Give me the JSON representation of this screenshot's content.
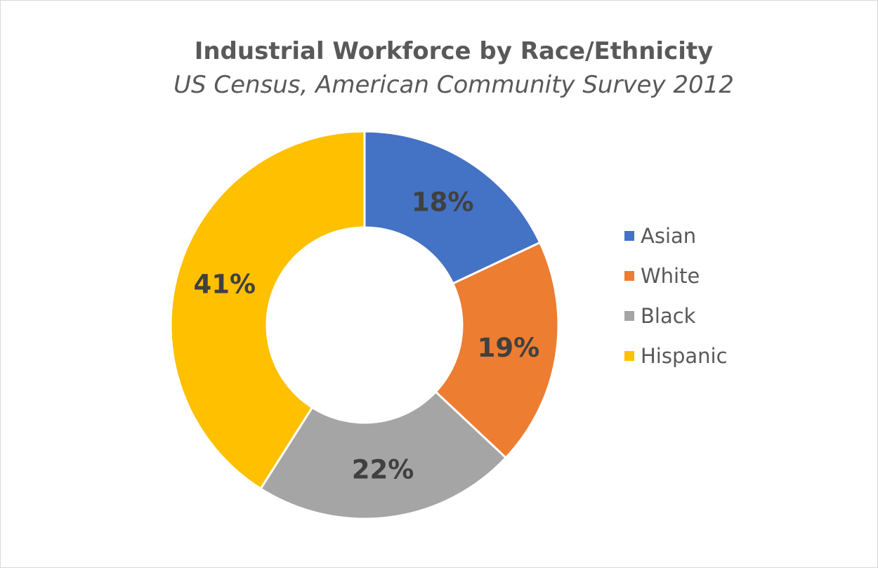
{
  "chart_data": {
    "type": "pie",
    "style": "donut",
    "title": "Industrial Workforce by Race/Ethnicity",
    "subtitle": "US Census, American Community Survey 2012",
    "categories": [
      "Asian",
      "White",
      "Black",
      "Hispanic"
    ],
    "values": [
      18,
      19,
      22,
      41
    ],
    "data_labels": [
      "18%",
      "19%",
      "22%",
      "41%"
    ],
    "colors": [
      "#4472C4",
      "#ED7D31",
      "#A5A5A5",
      "#FFC000"
    ],
    "legend_position": "right"
  }
}
